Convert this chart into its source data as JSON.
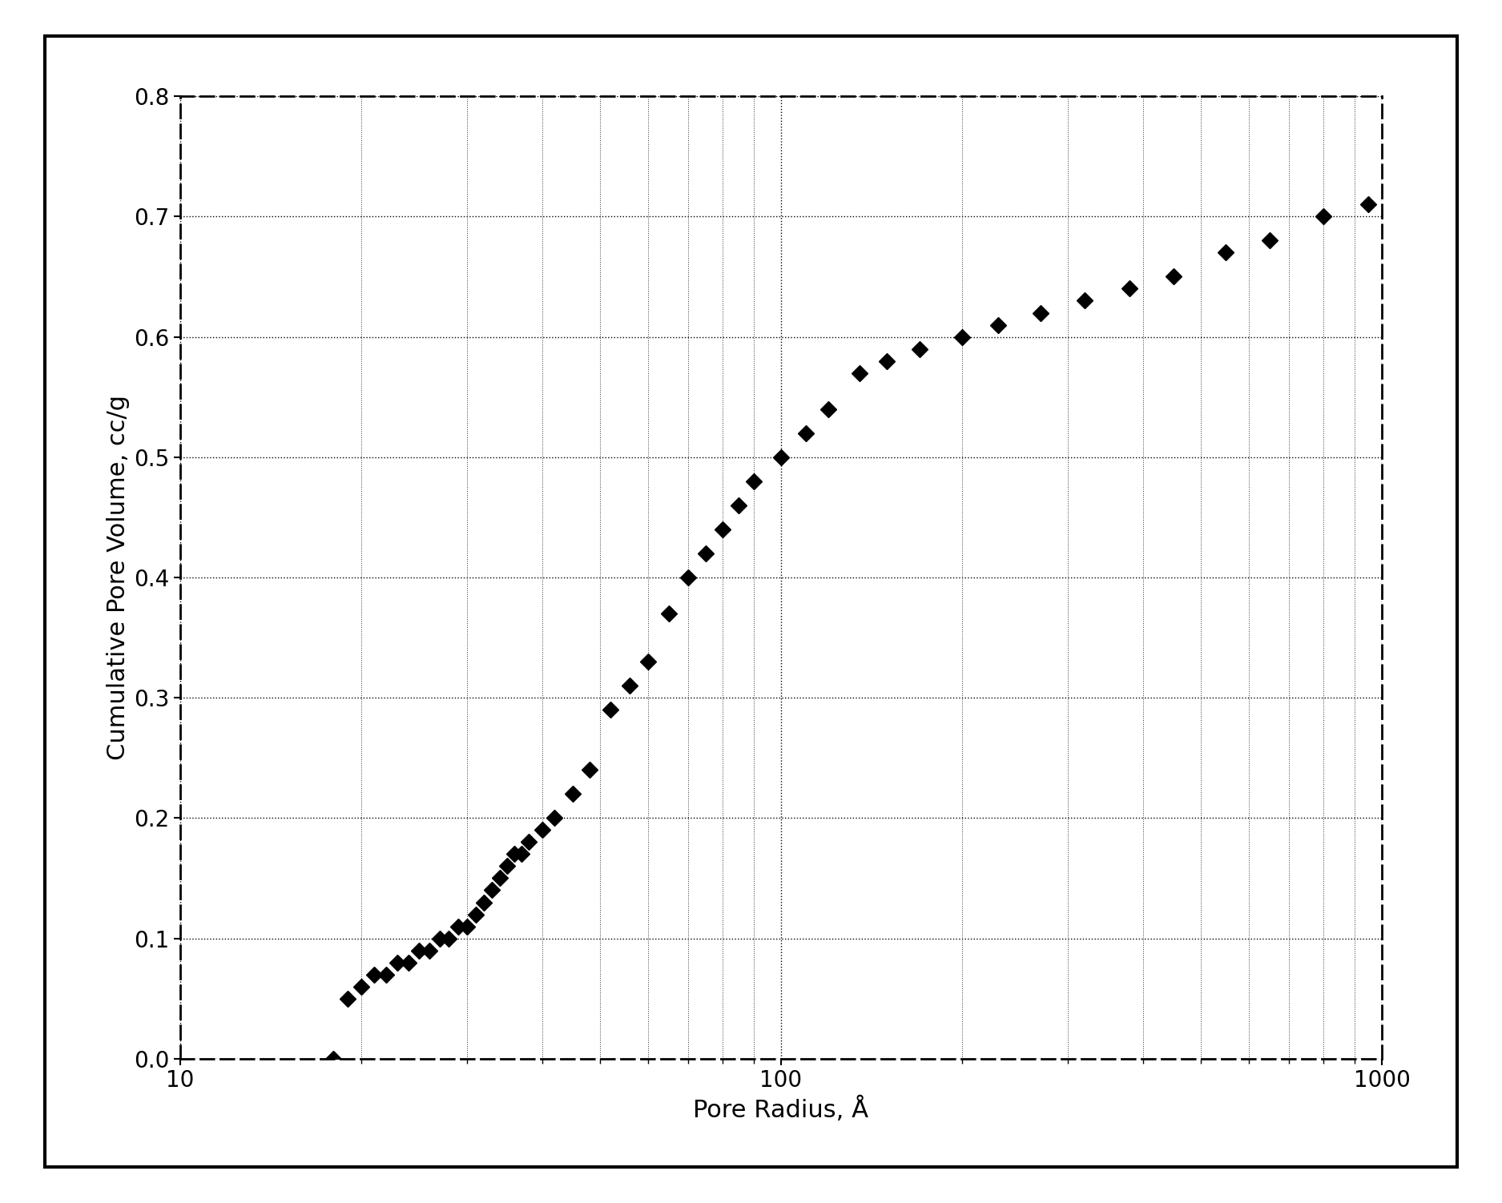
{
  "x": [
    18,
    19,
    20,
    21,
    22,
    23,
    24,
    25,
    26,
    27,
    28,
    29,
    30,
    31,
    32,
    33,
    34,
    35,
    36,
    37,
    38,
    40,
    42,
    45,
    48,
    52,
    56,
    60,
    65,
    70,
    75,
    80,
    85,
    90,
    100,
    110,
    120,
    135,
    150,
    170,
    200,
    230,
    270,
    320,
    380,
    450,
    550,
    650,
    800,
    950
  ],
  "y": [
    0.0,
    0.05,
    0.06,
    0.07,
    0.07,
    0.08,
    0.08,
    0.09,
    0.09,
    0.1,
    0.1,
    0.11,
    0.11,
    0.12,
    0.13,
    0.14,
    0.15,
    0.16,
    0.17,
    0.17,
    0.18,
    0.19,
    0.2,
    0.22,
    0.24,
    0.29,
    0.31,
    0.33,
    0.37,
    0.4,
    0.42,
    0.44,
    0.46,
    0.48,
    0.5,
    0.52,
    0.54,
    0.57,
    0.58,
    0.59,
    0.6,
    0.61,
    0.62,
    0.63,
    0.64,
    0.65,
    0.67,
    0.68,
    0.7,
    0.71
  ],
  "xlabel": "Pore Radius, Å",
  "ylabel": "Cumulative Pore Volume, cc/g",
  "xlim": [
    10,
    1000
  ],
  "ylim": [
    0,
    0.8
  ],
  "yticks": [
    0,
    0.1,
    0.2,
    0.3,
    0.4,
    0.5,
    0.6,
    0.7,
    0.8
  ],
  "marker_color": "#000000",
  "marker_style": "D",
  "marker_size": 10,
  "background_color": "#ffffff",
  "grid_color": "#000000",
  "xlabel_fontsize": 22,
  "ylabel_fontsize": 22,
  "tick_fontsize": 20
}
